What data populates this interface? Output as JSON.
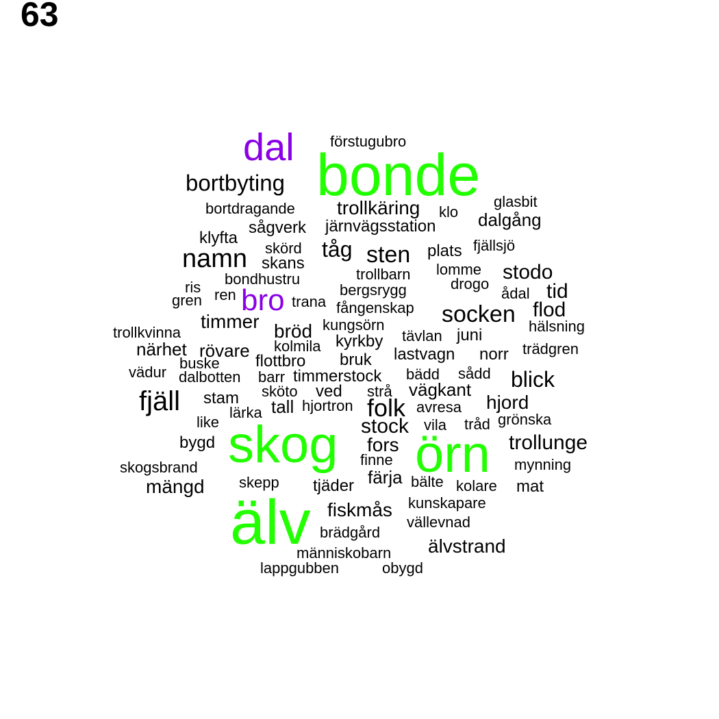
{
  "page_number": "63",
  "colors": {
    "default": "#000000",
    "highlight": "#22ff00",
    "accent": "#8a00e6"
  },
  "words": [
    {
      "text": "dal",
      "color": "#8a00e6"
    },
    {
      "text": "förstugubro",
      "color": "#000000"
    },
    {
      "text": "bonde",
      "color": "#22ff00"
    },
    {
      "text": "bortbyting",
      "color": "#000000"
    },
    {
      "text": "glasbit",
      "color": "#000000"
    },
    {
      "text": "bortdragande",
      "color": "#000000"
    },
    {
      "text": "trollkäring",
      "color": "#000000"
    },
    {
      "text": "klo",
      "color": "#000000"
    },
    {
      "text": "dalgång",
      "color": "#000000"
    },
    {
      "text": "sågverk",
      "color": "#000000"
    },
    {
      "text": "järnvägsstation",
      "color": "#000000"
    },
    {
      "text": "klyfta",
      "color": "#000000"
    },
    {
      "text": "skörd",
      "color": "#000000"
    },
    {
      "text": "tåg",
      "color": "#000000"
    },
    {
      "text": "sten",
      "color": "#000000"
    },
    {
      "text": "plats",
      "color": "#000000"
    },
    {
      "text": "fjällsjö",
      "color": "#000000"
    },
    {
      "text": "namn",
      "color": "#000000"
    },
    {
      "text": "skans",
      "color": "#000000"
    },
    {
      "text": "lomme",
      "color": "#000000"
    },
    {
      "text": "stodo",
      "color": "#000000"
    },
    {
      "text": "trollbarn",
      "color": "#000000"
    },
    {
      "text": "bondhustru",
      "color": "#000000"
    },
    {
      "text": "drogo",
      "color": "#000000"
    },
    {
      "text": "ris",
      "color": "#000000"
    },
    {
      "text": "bergsrygg",
      "color": "#000000"
    },
    {
      "text": "tid",
      "color": "#000000"
    },
    {
      "text": "ådal",
      "color": "#000000"
    },
    {
      "text": "ren",
      "color": "#000000"
    },
    {
      "text": "bro",
      "color": "#8a00e6"
    },
    {
      "text": "gren",
      "color": "#000000"
    },
    {
      "text": "trana",
      "color": "#000000"
    },
    {
      "text": "fångenskap",
      "color": "#000000"
    },
    {
      "text": "flod",
      "color": "#000000"
    },
    {
      "text": "socken",
      "color": "#000000"
    },
    {
      "text": "timmer",
      "color": "#000000"
    },
    {
      "text": "hälsning",
      "color": "#000000"
    },
    {
      "text": "kungsörn",
      "color": "#000000"
    },
    {
      "text": "bröd",
      "color": "#000000"
    },
    {
      "text": "trollkvinna",
      "color": "#000000"
    },
    {
      "text": "tävlan",
      "color": "#000000"
    },
    {
      "text": "juni",
      "color": "#000000"
    },
    {
      "text": "kyrkby",
      "color": "#000000"
    },
    {
      "text": "kolmila",
      "color": "#000000"
    },
    {
      "text": "närhet",
      "color": "#000000"
    },
    {
      "text": "rövare",
      "color": "#000000"
    },
    {
      "text": "trädgren",
      "color": "#000000"
    },
    {
      "text": "lastvagn",
      "color": "#000000"
    },
    {
      "text": "norr",
      "color": "#000000"
    },
    {
      "text": "flottbro",
      "color": "#000000"
    },
    {
      "text": "bruk",
      "color": "#000000"
    },
    {
      "text": "buske",
      "color": "#000000"
    },
    {
      "text": "vädur",
      "color": "#000000"
    },
    {
      "text": "bädd",
      "color": "#000000"
    },
    {
      "text": "sådd",
      "color": "#000000"
    },
    {
      "text": "dalbotten",
      "color": "#000000"
    },
    {
      "text": "barr",
      "color": "#000000"
    },
    {
      "text": "timmerstock",
      "color": "#000000"
    },
    {
      "text": "blick",
      "color": "#000000"
    },
    {
      "text": "vägkant",
      "color": "#000000"
    },
    {
      "text": "stam",
      "color": "#000000"
    },
    {
      "text": "sköto",
      "color": "#000000"
    },
    {
      "text": "ved",
      "color": "#000000"
    },
    {
      "text": "strå",
      "color": "#000000"
    },
    {
      "text": "fjäll",
      "color": "#000000"
    },
    {
      "text": "hjord",
      "color": "#000000"
    },
    {
      "text": "tall",
      "color": "#000000"
    },
    {
      "text": "hjortron",
      "color": "#000000"
    },
    {
      "text": "folk",
      "color": "#000000"
    },
    {
      "text": "avresa",
      "color": "#000000"
    },
    {
      "text": "lärka",
      "color": "#000000"
    },
    {
      "text": "like",
      "color": "#000000"
    },
    {
      "text": "grönska",
      "color": "#000000"
    },
    {
      "text": "vila",
      "color": "#000000"
    },
    {
      "text": "tråd",
      "color": "#000000"
    },
    {
      "text": "stock",
      "color": "#000000"
    },
    {
      "text": "skog",
      "color": "#22ff00"
    },
    {
      "text": "fors",
      "color": "#000000"
    },
    {
      "text": "örn",
      "color": "#22ff00"
    },
    {
      "text": "bygd",
      "color": "#000000"
    },
    {
      "text": "trollunge",
      "color": "#000000"
    },
    {
      "text": "finne",
      "color": "#000000"
    },
    {
      "text": "mynning",
      "color": "#000000"
    },
    {
      "text": "skogsbrand",
      "color": "#000000"
    },
    {
      "text": "färja",
      "color": "#000000"
    },
    {
      "text": "skepp",
      "color": "#000000"
    },
    {
      "text": "bälte",
      "color": "#000000"
    },
    {
      "text": "tjäder",
      "color": "#000000"
    },
    {
      "text": "kolare",
      "color": "#000000"
    },
    {
      "text": "mat",
      "color": "#000000"
    },
    {
      "text": "mängd",
      "color": "#000000"
    },
    {
      "text": "kunskapare",
      "color": "#000000"
    },
    {
      "text": "fiskmås",
      "color": "#000000"
    },
    {
      "text": "vällevnad",
      "color": "#000000"
    },
    {
      "text": "älv",
      "color": "#22ff00"
    },
    {
      "text": "brädgård",
      "color": "#000000"
    },
    {
      "text": "älvstrand",
      "color": "#000000"
    },
    {
      "text": "människobarn",
      "color": "#000000"
    },
    {
      "text": "lappgubben",
      "color": "#000000"
    },
    {
      "text": "obygd",
      "color": "#000000"
    }
  ]
}
